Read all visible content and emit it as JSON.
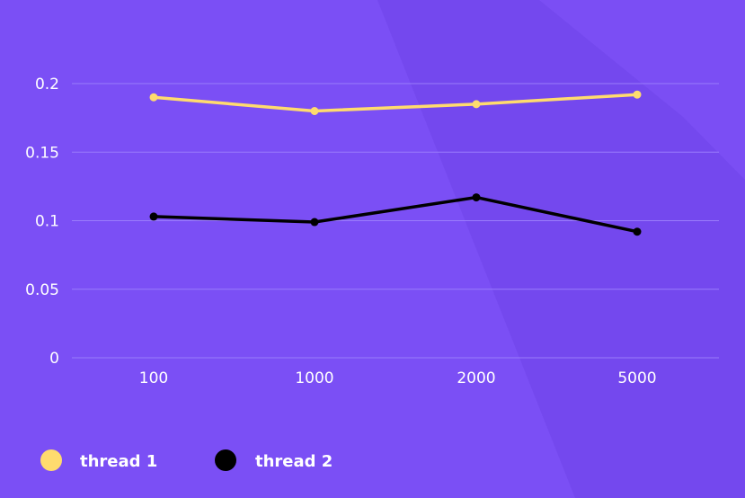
{
  "colors": {
    "background": "#7b4ff5",
    "background_shade": "#7043e8",
    "background_light": "#8a5cff",
    "grid": "#9a7cfb"
  },
  "chart_data": {
    "type": "line",
    "title": "",
    "xlabel": "",
    "ylabel": "",
    "categories": [
      "100",
      "1000",
      "2000",
      "5000"
    ],
    "ylim": [
      0,
      0.2
    ],
    "yticks": [
      "0",
      "0.05",
      "0.1",
      "0.15",
      "0.2"
    ],
    "grid": true,
    "legend_position": "bottom-left",
    "series": [
      {
        "name": "thread 1",
        "color": "#ffdb6e",
        "values": [
          0.19,
          0.18,
          0.185,
          0.192
        ]
      },
      {
        "name": "thread 2",
        "color": "#000000",
        "values": [
          0.103,
          0.099,
          0.117,
          0.092
        ]
      }
    ]
  }
}
